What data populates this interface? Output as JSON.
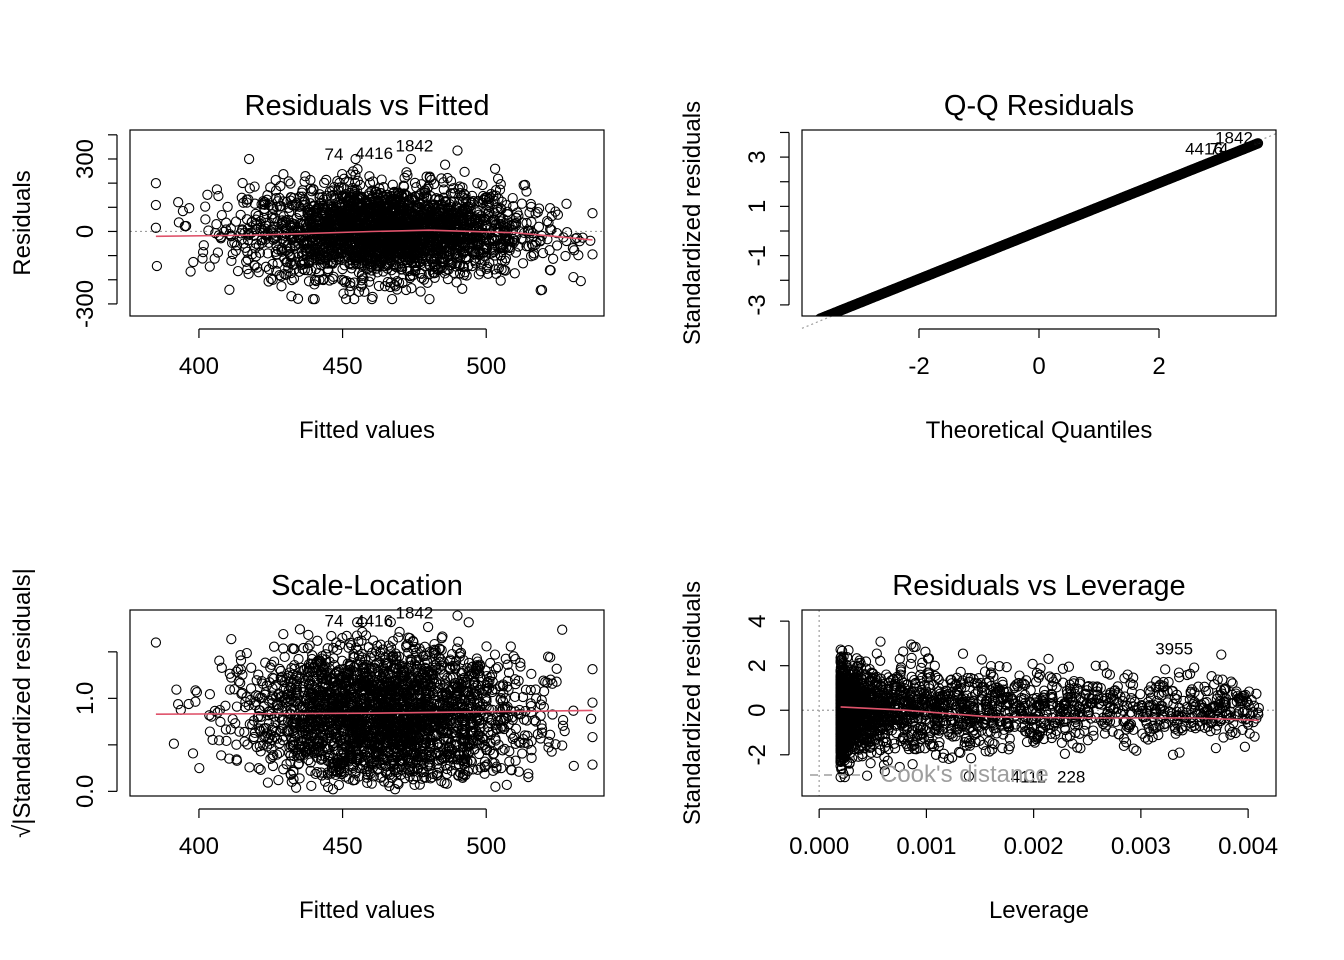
{
  "chart_data": [
    {
      "type": "scatter",
      "title": "Residuals vs Fitted",
      "xlabel": "Fitted values",
      "ylabel": "Residuals",
      "xlim": [
        376,
        541
      ],
      "ylim": [
        -350,
        420
      ],
      "xticks": [
        400,
        450,
        500
      ],
      "yticks": [
        -300,
        -200,
        -100,
        0,
        100,
        200,
        300,
        400
      ],
      "ytick_labels": [
        "-300",
        "",
        "",
        "0",
        "",
        "",
        "300",
        ""
      ],
      "refline": {
        "y": 0,
        "style": "dotted"
      },
      "point_cloud": {
        "x_center": 465,
        "x_sd": 24,
        "x_range": [
          385,
          537
        ],
        "y_sd": 95,
        "n": 2600
      },
      "smooth": [
        [
          385,
          -20
        ],
        [
          420,
          -15
        ],
        [
          460,
          0
        ],
        [
          480,
          5
        ],
        [
          510,
          -5
        ],
        [
          537,
          -35
        ]
      ],
      "outliers": [
        [
          490,
          335
        ]
      ],
      "labels": [
        {
          "x": 475,
          "y": 330,
          "text": "1842"
        },
        {
          "x": 447,
          "y": 295,
          "text": "74"
        },
        {
          "x": 461,
          "y": 300,
          "text": "4416"
        }
      ]
    },
    {
      "type": "scatter",
      "title": "Q-Q Residuals",
      "xlabel": "Theoretical Quantiles",
      "ylabel": "Standardized residuals",
      "xlim": [
        -3.95,
        3.95
      ],
      "ylim": [
        -3.45,
        4.1
      ],
      "xticks": [
        -2,
        0,
        2
      ],
      "yticks": [
        -3,
        -2,
        -1,
        0,
        1,
        2,
        3,
        4
      ],
      "ytick_labels": [
        "-3",
        "",
        "-1",
        "",
        "1",
        "",
        "3",
        ""
      ],
      "refline": {
        "slope": 1,
        "intercept": 0,
        "style": "dotted"
      },
      "point_cloud": {
        "x_range": [
          -3.65,
          3.65
        ],
        "slope": 0.975,
        "n": 500
      },
      "labels": [
        {
          "x": 3.25,
          "y": 3.55,
          "text": "1842"
        },
        {
          "x": 2.75,
          "y": 3.1,
          "text": "4416"
        },
        {
          "x": 3.0,
          "y": 3.1,
          "text": "74"
        }
      ]
    },
    {
      "type": "scatter",
      "title": "Scale-Location",
      "xlabel": "Fitted values",
      "ylabel": "√|Standardized residuals|",
      "xlim": [
        376,
        541
      ],
      "ylim": [
        -0.05,
        1.95
      ],
      "xticks": [
        400,
        450,
        500
      ],
      "yticks": [
        0.0,
        0.5,
        1.0,
        1.5
      ],
      "ytick_labels": [
        "0.0",
        "",
        "1.0",
        ""
      ],
      "point_cloud": {
        "x_center": 465,
        "x_sd": 24,
        "x_range": [
          385,
          537
        ],
        "n": 2600
      },
      "smooth": [
        [
          385,
          0.83
        ],
        [
          460,
          0.84
        ],
        [
          510,
          0.86
        ],
        [
          537,
          0.87
        ]
      ],
      "outliers": [
        [
          490,
          1.89
        ],
        [
          385,
          1.6
        ]
      ],
      "labels": [
        {
          "x": 475,
          "y": 1.86,
          "text": "1842"
        },
        {
          "x": 447,
          "y": 1.77,
          "text": "74"
        },
        {
          "x": 461,
          "y": 1.77,
          "text": "4416"
        }
      ]
    },
    {
      "type": "scatter",
      "title": "Residuals vs Leverage",
      "xlabel": "Leverage",
      "ylabel": "Standardized residuals",
      "xlim": [
        -0.00016,
        0.00426
      ],
      "ylim": [
        -3.85,
        4.5
      ],
      "xticks": [
        0.0,
        0.001,
        0.002,
        0.003,
        0.004
      ],
      "xtick_labels": [
        "0.000",
        "0.001",
        "0.002",
        "0.003",
        "0.004"
      ],
      "yticks": [
        -2,
        0,
        2,
        4
      ],
      "ytick_labels": [
        "-2",
        "0",
        "2",
        "4"
      ],
      "reflines": [
        {
          "y": 0,
          "style": "dotted"
        },
        {
          "x": 0,
          "style": "dotted"
        }
      ],
      "point_cloud": {
        "x_min": 0.0002,
        "x_max": 0.0041,
        "n": 2500
      },
      "smooth": [
        [
          0.0002,
          0.15
        ],
        [
          0.0008,
          0.0
        ],
        [
          0.0016,
          -0.3
        ],
        [
          0.0025,
          -0.35
        ],
        [
          0.0035,
          -0.35
        ],
        [
          0.0041,
          -0.45
        ]
      ],
      "outliers": [
        [
          0.00375,
          2.5
        ],
        [
          0.0041,
          0.1
        ],
        [
          0.0037,
          -1.7
        ],
        [
          0.0035,
          0.8
        ],
        [
          0.0033,
          -2.0
        ]
      ],
      "labels": [
        {
          "x": 0.00331,
          "y": 2.5,
          "text": "3955"
        },
        {
          "x": 0.00195,
          "y": -3.25,
          "text": "4111"
        },
        {
          "x": 0.00235,
          "y": -3.25,
          "text": "228"
        }
      ],
      "cooks_legend": "Cook's distance"
    }
  ]
}
